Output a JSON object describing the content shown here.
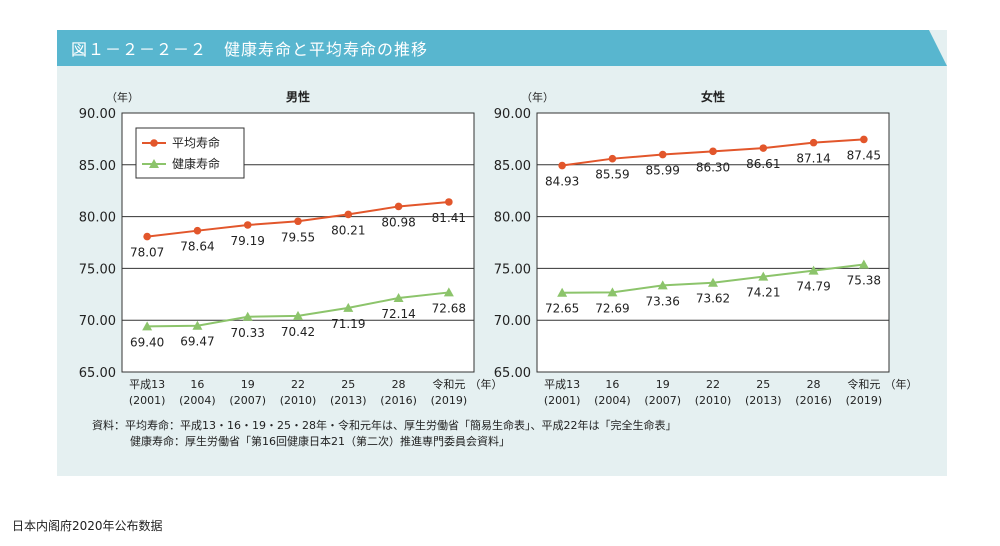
{
  "header": {
    "title": "図１－２－２－２　健康寿命と平均寿命の推移"
  },
  "chart_data": [
    {
      "type": "line",
      "title": "男性",
      "ylabel": "（年）",
      "xlabel": "（年）",
      "ylim": [
        65,
        90
      ],
      "yticks": [
        "65.00",
        "70.00",
        "75.00",
        "80.00",
        "85.00",
        "90.00"
      ],
      "categories": [
        {
          "era": "平成13",
          "year": "(2001)"
        },
        {
          "era": "16",
          "year": "(2004)"
        },
        {
          "era": "19",
          "year": "(2007)"
        },
        {
          "era": "22",
          "year": "(2010)"
        },
        {
          "era": "25",
          "year": "(2013)"
        },
        {
          "era": "28",
          "year": "(2016)"
        },
        {
          "era": "令和元",
          "year": "(2019)"
        }
      ],
      "series": [
        {
          "name": "平均寿命",
          "color": "#e2562b",
          "marker": "circle",
          "values": [
            78.07,
            78.64,
            79.19,
            79.55,
            80.21,
            80.98,
            81.41
          ],
          "labels": [
            "78.07",
            "78.64",
            "79.19",
            "79.55",
            "80.21",
            "80.98",
            "81.41"
          ]
        },
        {
          "name": "健康寿命",
          "color": "#8cc46b",
          "marker": "triangle",
          "values": [
            69.4,
            69.47,
            70.33,
            70.42,
            71.19,
            72.14,
            72.68
          ],
          "labels": [
            "69.40",
            "69.47",
            "70.33",
            "70.42",
            "71.19",
            "72.14",
            "72.68"
          ]
        }
      ],
      "legend": [
        "平均寿命",
        "健康寿命"
      ]
    },
    {
      "type": "line",
      "title": "女性",
      "ylabel": "（年）",
      "xlabel": "（年）",
      "ylim": [
        65,
        90
      ],
      "yticks": [
        "65.00",
        "70.00",
        "75.00",
        "80.00",
        "85.00",
        "90.00"
      ],
      "categories": [
        {
          "era": "平成13",
          "year": "(2001)"
        },
        {
          "era": "16",
          "year": "(2004)"
        },
        {
          "era": "19",
          "year": "(2007)"
        },
        {
          "era": "22",
          "year": "(2010)"
        },
        {
          "era": "25",
          "year": "(2013)"
        },
        {
          "era": "28",
          "year": "(2016)"
        },
        {
          "era": "令和元",
          "year": "(2019)"
        }
      ],
      "series": [
        {
          "name": "平均寿命",
          "color": "#e2562b",
          "marker": "circle",
          "values": [
            84.93,
            85.59,
            85.99,
            86.3,
            86.61,
            87.14,
            87.45
          ],
          "labels": [
            "84.93",
            "85.59",
            "85.99",
            "86.30",
            "86.61",
            "87.14",
            "87.45"
          ]
        },
        {
          "name": "健康寿命",
          "color": "#8cc46b",
          "marker": "triangle",
          "values": [
            72.65,
            72.69,
            73.36,
            73.62,
            74.21,
            74.79,
            75.38
          ],
          "labels": [
            "72.65",
            "72.69",
            "73.36",
            "73.62",
            "74.21",
            "74.79",
            "75.38"
          ]
        }
      ]
    }
  ],
  "source": {
    "line1": "資料：平均寿命：平成13・16・19・25・28年・令和元年は、厚生労働省「簡易生命表」、平成22年は「完全生命表」",
    "line2": "健康寿命：厚生労働省「第16回健康日本21（第二次）推進専門委員会資料」"
  },
  "footer": {
    "caption": "日本内阁府2020年公布数据"
  }
}
